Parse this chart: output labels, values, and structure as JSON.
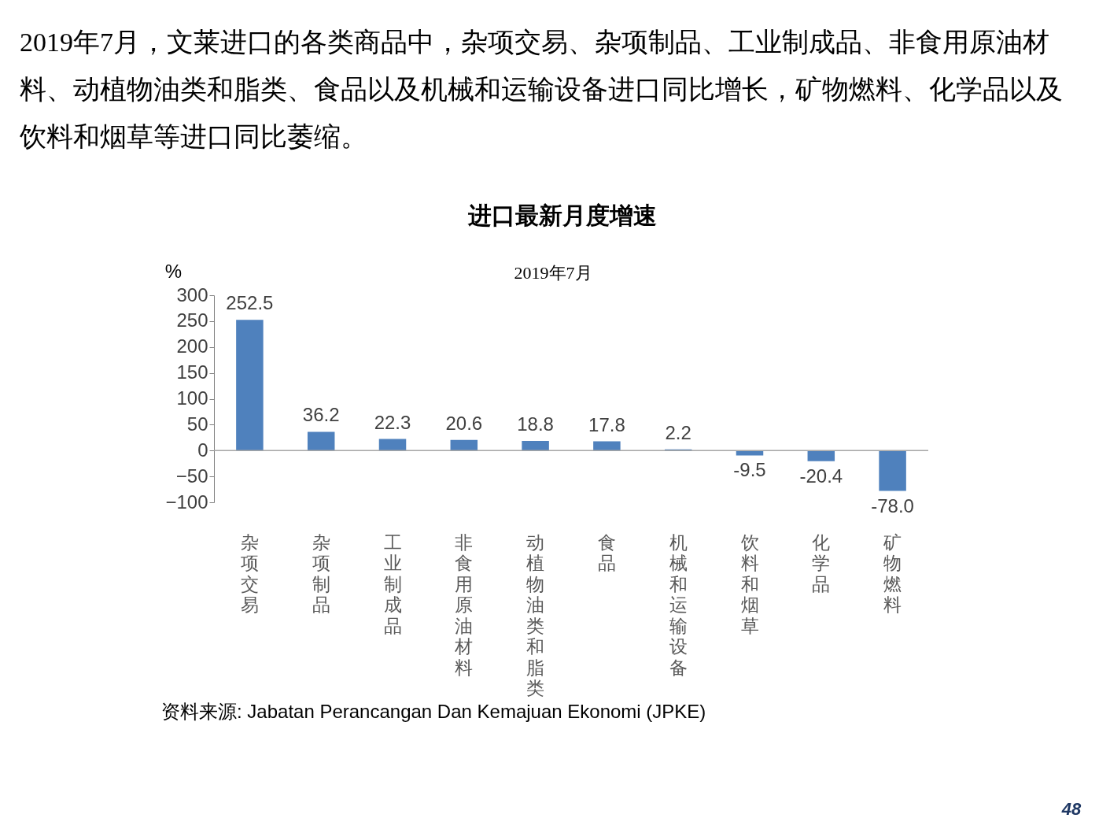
{
  "chart_data": {
    "type": "bar",
    "title": "进口最新月度增速",
    "subtitle": "2019年7月",
    "ylabel": "%",
    "categories": [
      "杂项交易",
      "杂项制品",
      "工业制成品",
      "非食用原油材料",
      "动植物油类和脂类",
      "食品",
      "机械和运输设备",
      "饮料和烟草",
      "化学品",
      "矿物燃料"
    ],
    "values": [
      252.5,
      36.2,
      22.3,
      20.6,
      18.8,
      17.8,
      2.2,
      -9.5,
      -20.4,
      -78.0
    ],
    "color": "#4f81bd",
    "ylim": [
      -100,
      300
    ],
    "yticks": [
      -100,
      -50,
      0,
      50,
      100,
      150,
      200,
      250,
      300
    ],
    "grid": false,
    "ref_lines": [
      {
        "axis": "y",
        "value": 0,
        "color": "#a6a6a6"
      }
    ],
    "value_labels": [
      "252.5",
      "36.2",
      "22.3",
      "20.6",
      "18.8",
      "17.8",
      "2.2",
      "-9.5",
      "-20.4",
      "-78.0"
    ],
    "annotations": [
      "2019年7月，文莱进口的各类商品中，杂项交易、杂项制品、工业制成品、非食用原油材料、动植物油类和脂类、食品以及机械和运输设备进口同比增长，矿物燃料、化学品以及饮料和烟草等进口同比萎缩。",
      "资料来源: Jabatan Perancangan Dan Kemajuan Ekonomi (JPKE)",
      "48"
    ]
  }
}
